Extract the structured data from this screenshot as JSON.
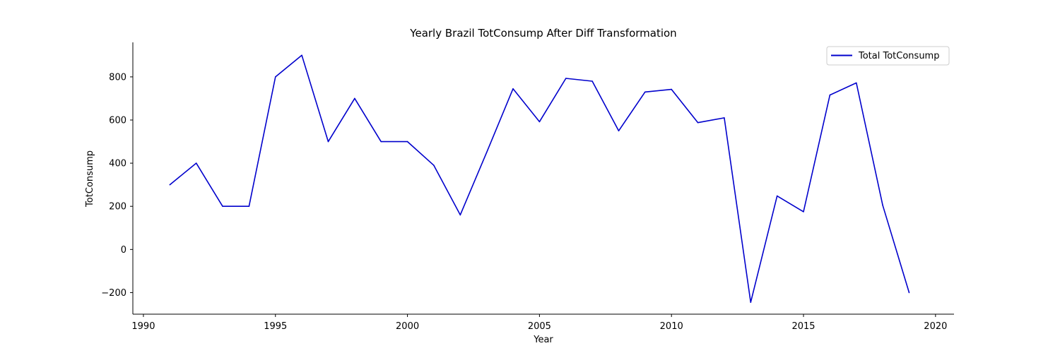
{
  "chart_data": {
    "type": "line",
    "title": "Yearly Brazil TotConsump After Diff Transformation",
    "xlabel": "Year",
    "ylabel": "TotConsump",
    "xlim": [
      1989.6,
      2020.7
    ],
    "ylim": [
      -300,
      960
    ],
    "xticks": [
      1990,
      1995,
      2000,
      2005,
      2010,
      2015,
      2020
    ],
    "yticks": [
      -200,
      0,
      200,
      400,
      600,
      800
    ],
    "legend_position": "top-right",
    "grid": false,
    "series": [
      {
        "name": "Total TotConsump",
        "color": "#0000cc",
        "x": [
          1991,
          1992,
          1993,
          1994,
          1995,
          1996,
          1997,
          1998,
          1999,
          2000,
          2001,
          2002,
          2003,
          2004,
          2005,
          2006,
          2007,
          2008,
          2009,
          2010,
          2011,
          2012,
          2013,
          2014,
          2015,
          2016,
          2017,
          2018,
          2019
        ],
        "values": [
          300,
          400,
          200,
          200,
          800,
          900,
          500,
          700,
          500,
          500,
          390,
          160,
          450,
          745,
          592,
          793,
          780,
          550,
          730,
          742,
          588,
          610,
          -245,
          248,
          175,
          716,
          772,
          205,
          -200
        ]
      }
    ]
  }
}
